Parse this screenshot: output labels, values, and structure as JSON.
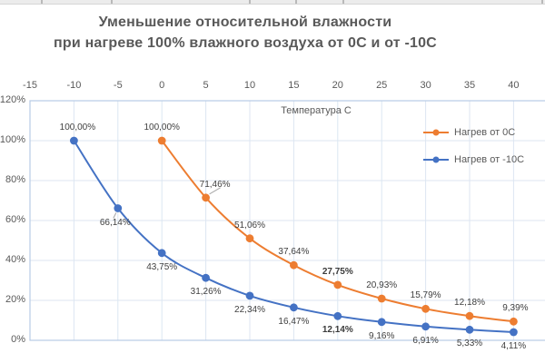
{
  "edge_strip": {
    "tick_positions": [
      45,
      122,
      274,
      325,
      377,
      596
    ]
  },
  "chart": {
    "title_line1": "Уменьшение относительной влажности",
    "title_line2": "при нагреве 100% влажного воздуха от 0С и от -10С",
    "x_axis_title": "Температура С"
  },
  "chart_data": {
    "type": "line",
    "title": "Уменьшение относительной влажности при нагреве 100% влажного воздуха от 0С и от -10С",
    "x_axis_label": "Температура С",
    "x_ticks": [
      -15,
      -10,
      -5,
      0,
      5,
      10,
      15,
      20,
      25,
      30,
      35,
      40
    ],
    "y_tick_labels": [
      "0%",
      "20%",
      "40%",
      "60%",
      "80%",
      "100%",
      "120%"
    ],
    "xlim": [
      -15,
      45
    ],
    "ylim": [
      0,
      120
    ],
    "grid": true,
    "smoothed_lines": true,
    "legend_position": "top-right-inside",
    "legend": [
      "Нагрев от 0С",
      "Нагрев от -10С"
    ],
    "series": [
      {
        "name": "Нагрев от 0С",
        "color": "#ED7D31",
        "x": [
          0,
          5,
          10,
          15,
          20,
          25,
          30,
          35,
          40
        ],
        "values": [
          100.0,
          71.46,
          51.06,
          37.64,
          27.75,
          20.93,
          15.79,
          12.18,
          9.39
        ],
        "labels": [
          "100,00%",
          "71,46%",
          "51,06%",
          "37,64%",
          "27,75%",
          "20,93%",
          "15,79%",
          "12,18%",
          "9,39%"
        ],
        "label_side": [
          "above",
          "above",
          "above",
          "above",
          "above",
          "above",
          "above",
          "above",
          "above"
        ],
        "label_bold": [
          false,
          false,
          false,
          false,
          true,
          false,
          false,
          false,
          false
        ],
        "label_dx": [
          0,
          10,
          0,
          0,
          0,
          0,
          0,
          0,
          2
        ],
        "label_leader": [
          false,
          true,
          false,
          false,
          false,
          false,
          false,
          false,
          false
        ]
      },
      {
        "name": "Нагрев от -10С",
        "color": "#4472C4",
        "x": [
          -10,
          -5,
          0,
          5,
          10,
          15,
          20,
          25,
          30,
          35,
          40
        ],
        "values": [
          100.0,
          66.14,
          43.75,
          31.26,
          22.34,
          16.47,
          12.14,
          9.16,
          6.91,
          5.33,
          4.11
        ],
        "labels": [
          "100,00%",
          "66,14%",
          "43,75%",
          "31,26%",
          "22,34%",
          "16,47%",
          "12,14%",
          "9,16%",
          "6,91%",
          "5,33%",
          "4,11%"
        ],
        "label_side": [
          "above",
          "below",
          "below",
          "below",
          "below",
          "below",
          "below",
          "below",
          "below",
          "below",
          "below"
        ],
        "label_bold": [
          false,
          false,
          false,
          false,
          false,
          false,
          true,
          false,
          false,
          false,
          false
        ],
        "label_dx": [
          4,
          -3,
          0,
          0,
          0,
          0,
          0,
          0,
          0,
          0,
          0
        ],
        "label_leader": [
          false,
          true,
          false,
          false,
          false,
          false,
          false,
          false,
          false,
          false,
          false
        ]
      }
    ],
    "colors": {
      "grid": "#DCE6F2",
      "plot_border": "#B7CBE5",
      "axis_text": "#595959",
      "data_label_text": "#404040",
      "title_text": "#595959",
      "leader_line": "#A6A6A6"
    }
  }
}
